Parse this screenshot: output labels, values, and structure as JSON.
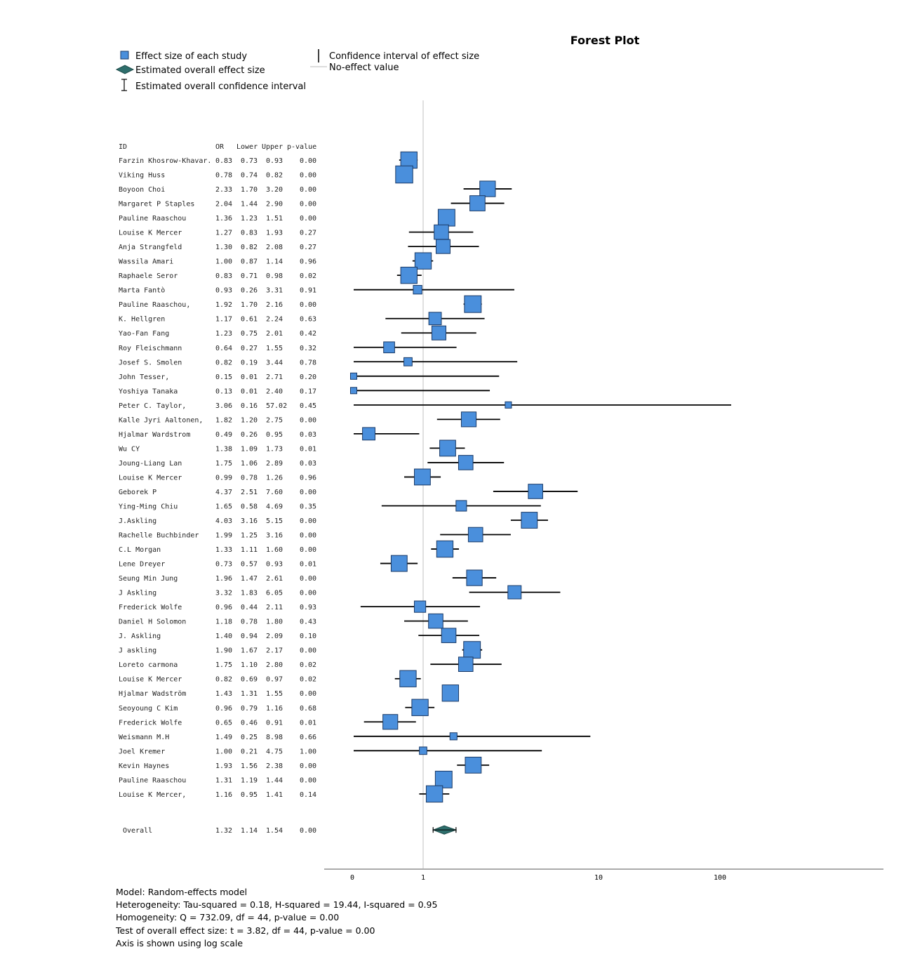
{
  "chart_data": {
    "type": "forest",
    "title": "Forest Plot",
    "scale": "log",
    "no_effect_value": 1,
    "axis_ticks": [
      "0",
      "1",
      "10",
      "100"
    ],
    "legend": {
      "effect": "Effect size of each study",
      "overall": "Estimated overall effect size",
      "overall_ci": "Estimated overall confidence interval",
      "ci": "Confidence interval of effect size",
      "no_effect": "No-effect value"
    },
    "columns": [
      "ID",
      "OR",
      "Lower",
      "Upper",
      "p-value"
    ],
    "studies": [
      {
        "id": "Farzin Khosrow-Khavar.",
        "or": "0.83",
        "lower": "0.73",
        "upper": "0.93",
        "p": "0.00",
        "w": 1.85
      },
      {
        "id": "Viking Huss",
        "or": "0.78",
        "lower": "0.74",
        "upper": "0.82",
        "p": "0.00",
        "w": 1.95
      },
      {
        "id": "Boyoon Choi",
        "or": "2.33",
        "lower": "1.70",
        "upper": "3.20",
        "p": "0.00",
        "w": 1.75
      },
      {
        "id": "Margaret P Staples",
        "or": "2.04",
        "lower": "1.44",
        "upper": "2.90",
        "p": "0.00",
        "w": 1.7
      },
      {
        "id": "Pauline Raaschou",
        "or": "1.36",
        "lower": "1.23",
        "upper": "1.51",
        "p": "0.00",
        "w": 1.9
      },
      {
        "id": "Louise K Mercer",
        "or": "1.27",
        "lower": "0.83",
        "upper": "1.93",
        "p": "0.27",
        "w": 1.6
      },
      {
        "id": "Anja Strangfeld",
        "or": "1.30",
        "lower": "0.82",
        "upper": "2.08",
        "p": "0.27",
        "w": 1.55
      },
      {
        "id": "Wassila Amari",
        "or": "1.00",
        "lower": "0.87",
        "upper": "1.14",
        "p": "0.96",
        "w": 1.85
      },
      {
        "id": "Raphaele Seror",
        "or": "0.83",
        "lower": "0.71",
        "upper": "0.98",
        "p": "0.02",
        "w": 1.85
      },
      {
        "id": "Marta Fantò",
        "or": "0.93",
        "lower": "0.26",
        "upper": "3.31",
        "p": "0.91",
        "w": 0.85
      },
      {
        "id": "Pauline Raaschou,",
        "or": "1.92",
        "lower": "1.70",
        "upper": "2.16",
        "p": "0.00",
        "w": 1.9
      },
      {
        "id": "K. Hellgren",
        "or": "1.17",
        "lower": "0.61",
        "upper": "2.24",
        "p": "0.63",
        "w": 1.35
      },
      {
        "id": "Yao-Fan Fang",
        "or": "1.23",
        "lower": "0.75",
        "upper": "2.01",
        "p": "0.42",
        "w": 1.55
      },
      {
        "id": "Roy Fleischmann",
        "or": "0.64",
        "lower": "0.27",
        "upper": "1.55",
        "p": "0.32",
        "w": 1.15
      },
      {
        "id": "Josef S. Smolen",
        "or": "0.82",
        "lower": "0.19",
        "upper": "3.44",
        "p": "0.78",
        "w": 0.8
      },
      {
        "id": "John Tesser,",
        "or": "0.15",
        "lower": "0.01",
        "upper": "2.71",
        "p": "0.20",
        "w": 0.55
      },
      {
        "id": "Yoshiya Tanaka",
        "or": "0.13",
        "lower": "0.01",
        "upper": "2.40",
        "p": "0.17",
        "w": 0.55
      },
      {
        "id": "Peter C. Taylor,",
        "or": "3.06",
        "lower": "0.16",
        "upper": "57.02",
        "p": "0.45",
        "w": 0.55
      },
      {
        "id": "Kalle Jyri Aaltonen,",
        "or": "1.82",
        "lower": "1.20",
        "upper": "2.75",
        "p": "0.00",
        "w": 1.65
      },
      {
        "id": "Hjalmar Wardstrom",
        "or": "0.49",
        "lower": "0.26",
        "upper": "0.95",
        "p": "0.03",
        "w": 1.35
      },
      {
        "id": "Wu CY",
        "or": "1.38",
        "lower": "1.09",
        "upper": "1.73",
        "p": "0.01",
        "w": 1.8
      },
      {
        "id": "Joung-Liang Lan",
        "or": "1.75",
        "lower": "1.06",
        "upper": "2.89",
        "p": "0.03",
        "w": 1.6
      },
      {
        "id": "Louise K Mercer",
        "or": "0.99",
        "lower": "0.78",
        "upper": "1.26",
        "p": "0.96",
        "w": 1.8
      },
      {
        "id": "Geborek P",
        "or": "4.37",
        "lower": "2.51",
        "upper": "7.60",
        "p": "0.00",
        "w": 1.6
      },
      {
        "id": "Ying-Ming Chiu",
        "or": "1.65",
        "lower": "0.58",
        "upper": "4.69",
        "p": "0.35",
        "w": 1.1
      },
      {
        "id": "J.Askling",
        "or": "4.03",
        "lower": "3.16",
        "upper": "5.15",
        "p": "0.00",
        "w": 1.8
      },
      {
        "id": "Rachelle Buchbinder",
        "or": "1.99",
        "lower": "1.25",
        "upper": "3.16",
        "p": "0.00",
        "w": 1.6
      },
      {
        "id": "C.L Morgan",
        "or": "1.33",
        "lower": "1.11",
        "upper": "1.60",
        "p": "0.00",
        "w": 1.85
      },
      {
        "id": "Lene Dreyer",
        "or": "0.73",
        "lower": "0.57",
        "upper": "0.93",
        "p": "0.01",
        "w": 1.8
      },
      {
        "id": "Seung Min Jung",
        "or": "1.96",
        "lower": "1.47",
        "upper": "2.61",
        "p": "0.00",
        "w": 1.75
      },
      {
        "id": "J Askling",
        "or": "3.32",
        "lower": "1.83",
        "upper": "6.05",
        "p": "0.00",
        "w": 1.45
      },
      {
        "id": "Frederick Wolfe",
        "or": "0.96",
        "lower": "0.44",
        "upper": "2.11",
        "p": "0.93",
        "w": 1.2
      },
      {
        "id": "Daniel H Solomon",
        "or": "1.18",
        "lower": "0.78",
        "upper": "1.80",
        "p": "0.43",
        "w": 1.6
      },
      {
        "id": "J. Askling",
        "or": "1.40",
        "lower": "0.94",
        "upper": "2.09",
        "p": "0.10",
        "w": 1.6
      },
      {
        "id": "J askling",
        "or": "1.90",
        "lower": "1.67",
        "upper": "2.17",
        "p": "0.00",
        "w": 1.9
      },
      {
        "id": "Loreto carmona",
        "or": "1.75",
        "lower": "1.10",
        "upper": "2.80",
        "p": "0.02",
        "w": 1.6
      },
      {
        "id": "Louise K Mercer",
        "or": "0.82",
        "lower": "0.69",
        "upper": "0.97",
        "p": "0.02",
        "w": 1.85
      },
      {
        "id": "Hjalmar Wadström",
        "or": "1.43",
        "lower": "1.31",
        "upper": "1.55",
        "p": "0.00",
        "w": 1.85
      },
      {
        "id": "Seoyoung C Kim",
        "or": "0.96",
        "lower": "0.79",
        "upper": "1.16",
        "p": "0.68",
        "w": 1.85
      },
      {
        "id": "Frederick Wolfe",
        "or": "0.65",
        "lower": "0.46",
        "upper": "0.91",
        "p": "0.01",
        "w": 1.65
      },
      {
        "id": "Weismann M.H",
        "or": "1.49",
        "lower": "0.25",
        "upper": "8.98",
        "p": "0.66",
        "w": 0.65
      },
      {
        "id": "Joel Kremer",
        "or": "1.00",
        "lower": "0.21",
        "upper": "4.75",
        "p": "1.00",
        "w": 0.7
      },
      {
        "id": "Kevin Haynes",
        "or": "1.93",
        "lower": "1.56",
        "upper": "2.38",
        "p": "0.00",
        "w": 1.8
      },
      {
        "id": "Pauline Raaschou",
        "or": "1.31",
        "lower": "1.19",
        "upper": "1.44",
        "p": "0.00",
        "w": 1.9
      },
      {
        "id": "Louise K Mercer,",
        "or": "1.16",
        "lower": "0.95",
        "upper": "1.41",
        "p": "0.14",
        "w": 1.85
      }
    ],
    "overall": {
      "id": "Overall",
      "or": "1.32",
      "lower": "1.14",
      "upper": "1.54",
      "p": "0.00"
    }
  },
  "footer": {
    "model": "Model: Random-effects model",
    "heterogeneity": "Heterogeneity: Tau-squared = 0.18, H-squared = 19.44, I-squared = 0.95",
    "homogeneity": "Homogeneity: Q = 732.09, df = 44, p-value = 0.00",
    "test": "Test of overall effect size: t = 3.82, df = 44, p-value = 0.00",
    "axis_note": "Axis is shown using log scale"
  }
}
